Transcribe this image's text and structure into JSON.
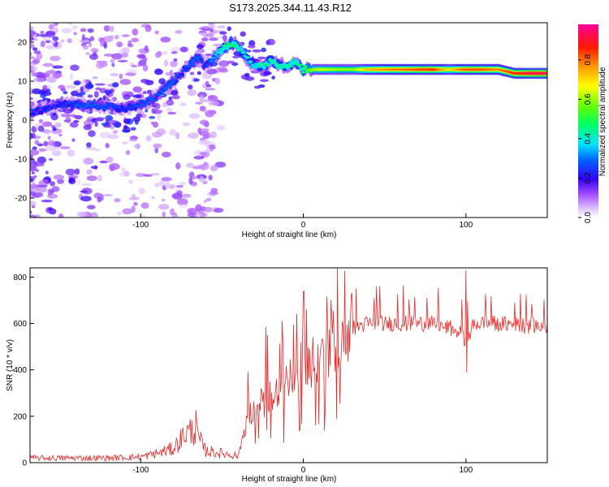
{
  "title": "S173.2025.344.11.43.R12",
  "chart_data": [
    {
      "type": "heatmap",
      "name": "spectrogram",
      "xlabel": "Height of straight line (km)",
      "ylabel": "Frequency (Hz)",
      "xlim": [
        -168,
        150
      ],
      "ylim": [
        -25,
        25
      ],
      "xticks": [
        -100,
        0,
        100
      ],
      "xtick_labels": [
        "-100",
        "0",
        "100"
      ],
      "yticks": [
        -20,
        -10,
        0,
        10,
        20
      ],
      "ytick_labels": [
        "-20",
        "-10",
        "0",
        "10",
        "20"
      ],
      "ridge": {
        "x": [
          -168,
          -150,
          -130,
          -110,
          -100,
          -95,
          -90,
          -85,
          -80,
          -75,
          -70,
          -65,
          -60,
          -55,
          -50,
          -45,
          -40,
          -35,
          -30,
          -25,
          -20,
          -15,
          -10,
          -5,
          0,
          5,
          10,
          20,
          30,
          40,
          50,
          60,
          70,
          80,
          90,
          95,
          100,
          110,
          120,
          130,
          140,
          150
        ],
        "y": [
          2,
          4,
          4,
          3,
          4,
          5,
          6,
          8,
          10,
          12,
          14,
          16,
          14,
          16,
          18,
          20,
          19,
          16,
          14,
          14,
          15,
          14,
          14,
          15,
          13,
          13,
          13,
          13,
          13,
          13,
          13,
          13,
          13,
          13,
          13,
          13,
          13,
          13,
          13,
          12,
          12,
          12
        ],
        "amplitude": [
          0.25,
          0.25,
          0.3,
          0.25,
          0.28,
          0.3,
          0.28,
          0.3,
          0.3,
          0.25,
          0.3,
          0.3,
          0.25,
          0.35,
          0.45,
          0.5,
          0.45,
          0.4,
          0.4,
          0.45,
          0.45,
          0.45,
          0.45,
          0.45,
          0.5,
          0.6,
          0.65,
          0.62,
          0.6,
          0.75,
          0.8,
          0.82,
          0.85,
          0.88,
          0.7,
          0.8,
          0.85,
          0.85,
          0.8,
          0.88,
          0.95,
          0.95
        ]
      },
      "colorbar": {
        "label": "Normalized spectral amplitude",
        "ticks": [
          0.0,
          0.2,
          0.4,
          0.6,
          0.8
        ],
        "tick_labels": [
          "0.0",
          "0.2",
          "0.4",
          "0.6",
          "0.8"
        ],
        "range": [
          0,
          0.98
        ]
      }
    },
    {
      "type": "line",
      "name": "snr",
      "xlabel": "Height of straight line (km)",
      "ylabel": "SNR (10 * v/v)",
      "xlim": [
        -168,
        150
      ],
      "ylim": [
        0,
        840
      ],
      "xticks": [
        -100,
        0,
        100
      ],
      "xtick_labels": [
        "-100",
        "0",
        "100"
      ],
      "yticks": [
        0,
        200,
        400,
        600,
        800
      ],
      "ytick_labels": [
        "0",
        "200",
        "400",
        "600",
        "800"
      ],
      "color": "#e82a2a",
      "envelope": {
        "x": [
          -168,
          -120,
          -100,
          -90,
          -80,
          -72,
          -67,
          -60,
          -50,
          -40,
          -35,
          -30,
          -25,
          -20,
          -10,
          0,
          10,
          20,
          30,
          40,
          60,
          80,
          95,
          100,
          105,
          120,
          140,
          150
        ],
        "y": [
          20,
          20,
          25,
          40,
          60,
          130,
          140,
          50,
          40,
          30,
          180,
          230,
          260,
          300,
          330,
          420,
          470,
          530,
          580,
          600,
          600,
          600,
          570,
          520,
          600,
          600,
          590,
          590
        ]
      },
      "spikes": [
        {
          "x": -66,
          "y": 225
        },
        {
          "x": -34,
          "y": 390
        },
        {
          "x": -22,
          "y": 550
        },
        {
          "x": -13,
          "y": 610
        },
        {
          "x": -4,
          "y": 640
        },
        {
          "x": 2,
          "y": 660
        },
        {
          "x": 30,
          "y": 730
        },
        {
          "x": 45,
          "y": 760
        },
        {
          "x": 100,
          "y": 830
        },
        {
          "x": 100.5,
          "y": 390
        }
      ]
    }
  ]
}
